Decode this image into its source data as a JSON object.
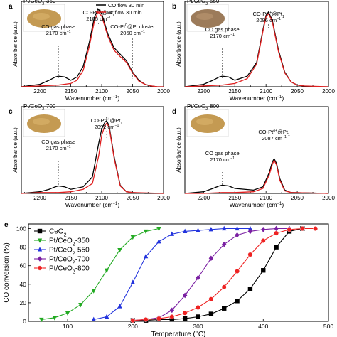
{
  "chart_data": [
    {
      "type": "line",
      "panel_label": "a",
      "sample": "Pt/CeO2-350",
      "xlabel": "Wavenumber (cm-1)",
      "ylabel": "Absorbance (a.u.)",
      "xlim": [
        2230,
        2000
      ],
      "x_ticks": [
        2200,
        2150,
        2100,
        2050,
        2000
      ],
      "legend": [
        "CO flow 30 min",
        "Ar flow 30 min"
      ],
      "series": [
        {
          "name": "CO flow 30 min",
          "color": "#000000",
          "x": [
            2230,
            2200,
            2185,
            2175,
            2170,
            2160,
            2150,
            2140,
            2130,
            2120,
            2112,
            2106,
            2100,
            2090,
            2080,
            2070,
            2060,
            2050,
            2040,
            2030,
            2020,
            2010,
            2000
          ],
          "y": [
            0.0,
            0.03,
            0.08,
            0.12,
            0.13,
            0.12,
            0.08,
            0.12,
            0.25,
            0.55,
            0.85,
            0.96,
            0.9,
            0.65,
            0.48,
            0.4,
            0.32,
            0.18,
            0.08,
            0.03,
            0.01,
            0.0,
            0.0
          ]
        },
        {
          "name": "Ar flow 30 min",
          "color": "#e02020",
          "x": [
            2230,
            2200,
            2170,
            2150,
            2140,
            2130,
            2120,
            2112,
            2106,
            2100,
            2090,
            2080,
            2070,
            2060,
            2050,
            2040,
            2030,
            2020,
            2010,
            2000
          ],
          "y": [
            0.0,
            0.01,
            0.02,
            0.04,
            0.08,
            0.2,
            0.5,
            0.8,
            0.92,
            0.87,
            0.62,
            0.45,
            0.37,
            0.3,
            0.17,
            0.07,
            0.03,
            0.01,
            0.0,
            0.0
          ]
        }
      ],
      "annotations": [
        {
          "text": "CO gas phase",
          "sub": "2170 cm-1",
          "x": 2170,
          "color": "#000000"
        },
        {
          "text": "CO-Ptδ+@Pt1",
          "sub": "2105 cm-1",
          "x": 2105,
          "color": "#e02020"
        },
        {
          "text": "CO-Pt0@Pt cluster",
          "sub": "2050 cm-1",
          "x": 2050,
          "color": "#6a2a9a"
        }
      ]
    },
    {
      "type": "line",
      "panel_label": "b",
      "sample": "Pt/CeO2-550",
      "xlabel": "Wavenumber (cm-1)",
      "ylabel": "Absorbance (a.u.)",
      "xlim": [
        2230,
        2000
      ],
      "x_ticks": [
        2200,
        2150,
        2100,
        2050,
        2000
      ],
      "series": [
        {
          "name": "CO flow 30 min",
          "color": "#000000",
          "x": [
            2230,
            2200,
            2185,
            2175,
            2170,
            2160,
            2150,
            2130,
            2115,
            2105,
            2100,
            2096,
            2090,
            2080,
            2070,
            2060,
            2050,
            2040,
            2030,
            2000
          ],
          "y": [
            0.0,
            0.03,
            0.08,
            0.12,
            0.13,
            0.12,
            0.08,
            0.13,
            0.3,
            0.7,
            0.88,
            0.92,
            0.82,
            0.45,
            0.18,
            0.06,
            0.02,
            0.01,
            0.0,
            0.0
          ]
        },
        {
          "name": "Ar flow 30 min",
          "color": "#e02020",
          "x": [
            2230,
            2200,
            2170,
            2150,
            2130,
            2115,
            2105,
            2100,
            2096,
            2090,
            2080,
            2070,
            2060,
            2050,
            2040,
            2000
          ],
          "y": [
            0.0,
            0.01,
            0.02,
            0.04,
            0.1,
            0.28,
            0.68,
            0.86,
            0.9,
            0.8,
            0.43,
            0.17,
            0.06,
            0.02,
            0.01,
            0.0
          ]
        }
      ],
      "annotations": [
        {
          "text": "CO gas phase",
          "sub": "2170 cm-1",
          "x": 2170,
          "color": "#000000"
        },
        {
          "text": "CO-Ptδ+@Pt1",
          "sub": "2096 cm-1",
          "x": 2096,
          "color": "#e02020"
        }
      ]
    },
    {
      "type": "line",
      "panel_label": "c",
      "sample": "Pt/CeO2-700",
      "xlabel": "Wavenumber (cm-1)",
      "ylabel": "Absorbance (a.u.)",
      "xlim": [
        2230,
        2000
      ],
      "x_ticks": [
        2200,
        2150,
        2100,
        2050,
        2000
      ],
      "series": [
        {
          "name": "CO flow 30 min",
          "color": "#000000",
          "x": [
            2230,
            2200,
            2185,
            2175,
            2170,
            2160,
            2150,
            2130,
            2115,
            2105,
            2100,
            2095,
            2092,
            2088,
            2080,
            2070,
            2060,
            2050,
            2030,
            2000
          ],
          "y": [
            0.0,
            0.02,
            0.05,
            0.08,
            0.09,
            0.08,
            0.05,
            0.08,
            0.2,
            0.6,
            0.78,
            0.86,
            0.88,
            0.82,
            0.45,
            0.1,
            0.02,
            0.01,
            0.0,
            0.0
          ]
        },
        {
          "name": "Ar flow 30 min",
          "color": "#e02020",
          "x": [
            2230,
            2200,
            2170,
            2150,
            2130,
            2115,
            2105,
            2100,
            2095,
            2092,
            2088,
            2080,
            2070,
            2060,
            2050,
            2000
          ],
          "y": [
            0.0,
            0.01,
            0.01,
            0.02,
            0.05,
            0.12,
            0.45,
            0.7,
            0.82,
            0.85,
            0.8,
            0.43,
            0.09,
            0.02,
            0.01,
            0.0
          ]
        }
      ],
      "annotations": [
        {
          "text": "CO gas phase",
          "sub": "2170 cm-1",
          "x": 2170,
          "color": "#000000"
        },
        {
          "text": "CO-Ptδ+@Pt1",
          "sub": "2092 cm-1",
          "x": 2092,
          "color": "#e02020"
        }
      ]
    },
    {
      "type": "line",
      "panel_label": "d",
      "sample": "Pt/CeO2-800",
      "xlabel": "Wavenumber (cm-1)",
      "ylabel": "Absorbance (a.u.)",
      "xlim": [
        2230,
        2000
      ],
      "x_ticks": [
        2200,
        2150,
        2100,
        2050,
        2000
      ],
      "series": [
        {
          "name": "CO flow 30 min",
          "color": "#000000",
          "x": [
            2230,
            2200,
            2185,
            2175,
            2170,
            2160,
            2150,
            2120,
            2105,
            2095,
            2090,
            2087,
            2083,
            2078,
            2070,
            2060,
            2000
          ],
          "y": [
            0.0,
            0.02,
            0.06,
            0.09,
            0.1,
            0.09,
            0.06,
            0.04,
            0.08,
            0.25,
            0.38,
            0.42,
            0.36,
            0.18,
            0.04,
            0.01,
            0.0
          ]
        },
        {
          "name": "Ar flow 30 min",
          "color": "#e02020",
          "x": [
            2230,
            2200,
            2170,
            2150,
            2120,
            2105,
            2095,
            2090,
            2087,
            2083,
            2078,
            2070,
            2060,
            2000
          ],
          "y": [
            0.0,
            0.0,
            0.01,
            0.01,
            0.02,
            0.06,
            0.22,
            0.35,
            0.4,
            0.34,
            0.16,
            0.03,
            0.01,
            0.0
          ]
        }
      ],
      "annotations": [
        {
          "text": "CO gas phase",
          "sub": "2170 cm-1",
          "x": 2170,
          "color": "#000000"
        },
        {
          "text": "CO-Ptδ+@Pt1",
          "sub": "2087 cm-1",
          "x": 2087,
          "color": "#e02020"
        }
      ]
    },
    {
      "type": "line",
      "panel_label": "e",
      "xlabel": "Temperature (°C)",
      "ylabel": "CO conversion (%)",
      "xlim": [
        40,
        500
      ],
      "ylim": [
        0,
        105
      ],
      "x_ticks": [
        100,
        200,
        300,
        400,
        500
      ],
      "y_ticks": [
        0,
        20,
        40,
        60,
        80,
        100
      ],
      "legend_position": "top-left",
      "series": [
        {
          "name": "CeO2",
          "color": "#000000",
          "marker": "square",
          "x": [
            200,
            220,
            240,
            260,
            280,
            300,
            320,
            340,
            360,
            380,
            400,
            420,
            440,
            460
          ],
          "y": [
            1,
            1,
            2,
            2,
            3,
            5,
            8,
            14,
            22,
            35,
            55,
            80,
            97,
            100
          ]
        },
        {
          "name": "Pt/CeO2-350",
          "color": "#22aa22",
          "marker": "triangle-down",
          "x": [
            60,
            80,
            100,
            120,
            140,
            160,
            180,
            200,
            220,
            240
          ],
          "y": [
            2,
            4,
            9,
            18,
            33,
            55,
            77,
            91,
            97,
            100
          ]
        },
        {
          "name": "Pt/CeO2-550",
          "color": "#2233dd",
          "marker": "triangle-up",
          "x": [
            140,
            160,
            180,
            200,
            220,
            240,
            260,
            280,
            300,
            320,
            340,
            360,
            380
          ],
          "y": [
            2,
            5,
            16,
            42,
            70,
            86,
            94,
            97,
            98,
            99,
            100,
            100,
            100
          ]
        },
        {
          "name": "Pt/CeO2-700",
          "color": "#7a1fa2",
          "marker": "diamond",
          "x": [
            200,
            220,
            240,
            260,
            280,
            300,
            320,
            340,
            360,
            380,
            400,
            420,
            440
          ],
          "y": [
            1,
            2,
            4,
            12,
            28,
            47,
            68,
            83,
            93,
            97,
            99,
            100,
            100
          ]
        },
        {
          "name": "Pt/CeO2-800",
          "color": "#ee2222",
          "marker": "circle",
          "x": [
            200,
            220,
            240,
            260,
            280,
            300,
            320,
            340,
            360,
            380,
            400,
            420,
            440,
            460,
            480
          ],
          "y": [
            1,
            2,
            3,
            5,
            9,
            15,
            24,
            37,
            54,
            72,
            87,
            95,
            99,
            100,
            100
          ]
        }
      ]
    }
  ]
}
